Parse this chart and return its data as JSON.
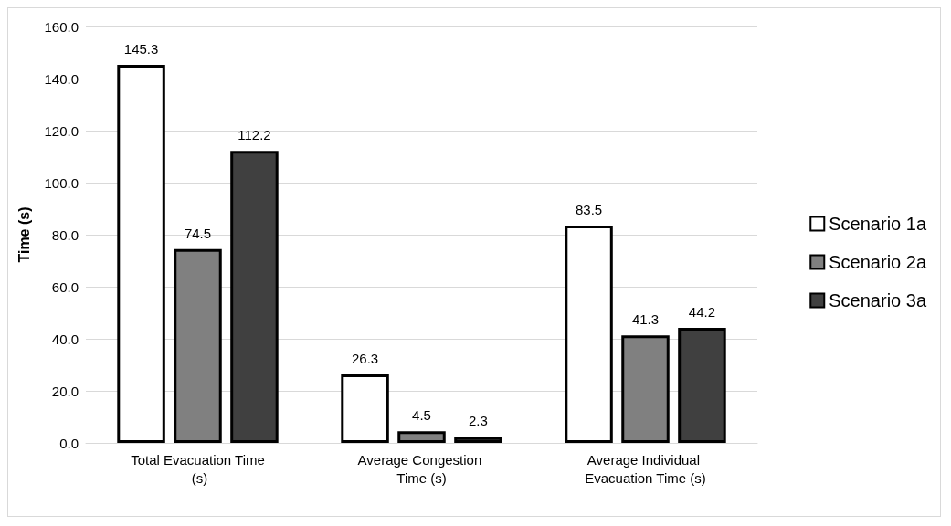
{
  "chart_data": {
    "type": "bar",
    "ylabel": "Time (s)",
    "categories": [
      "Total Evacuation Time (s)",
      "Average Congestion Time (s)",
      "Average Individual Evacuation Time (s)"
    ],
    "series": [
      {
        "name": "Scenario 1a",
        "color": "#ffffff",
        "values": [
          145.3,
          26.3,
          83.5
        ]
      },
      {
        "name": "Scenario 2a",
        "color": "#808080",
        "values": [
          74.5,
          4.5,
          41.3
        ]
      },
      {
        "name": "Scenario 3a",
        "color": "#404040",
        "values": [
          112.2,
          2.3,
          44.2
        ]
      }
    ],
    "ylim": [
      0,
      160
    ],
    "yticks": [
      {
        "value": 0,
        "label": "0.0"
      },
      {
        "value": 20,
        "label": "20.0"
      },
      {
        "value": 40,
        "label": "40.0"
      },
      {
        "value": 60,
        "label": "60.0"
      },
      {
        "value": 80,
        "label": "80.0"
      },
      {
        "value": 100,
        "label": "100.0"
      },
      {
        "value": 120,
        "label": "120.0"
      },
      {
        "value": 140,
        "label": "140.0"
      },
      {
        "value": 160,
        "label": "160.0"
      }
    ],
    "grid": "y",
    "legend": "right",
    "data_labels": true
  }
}
